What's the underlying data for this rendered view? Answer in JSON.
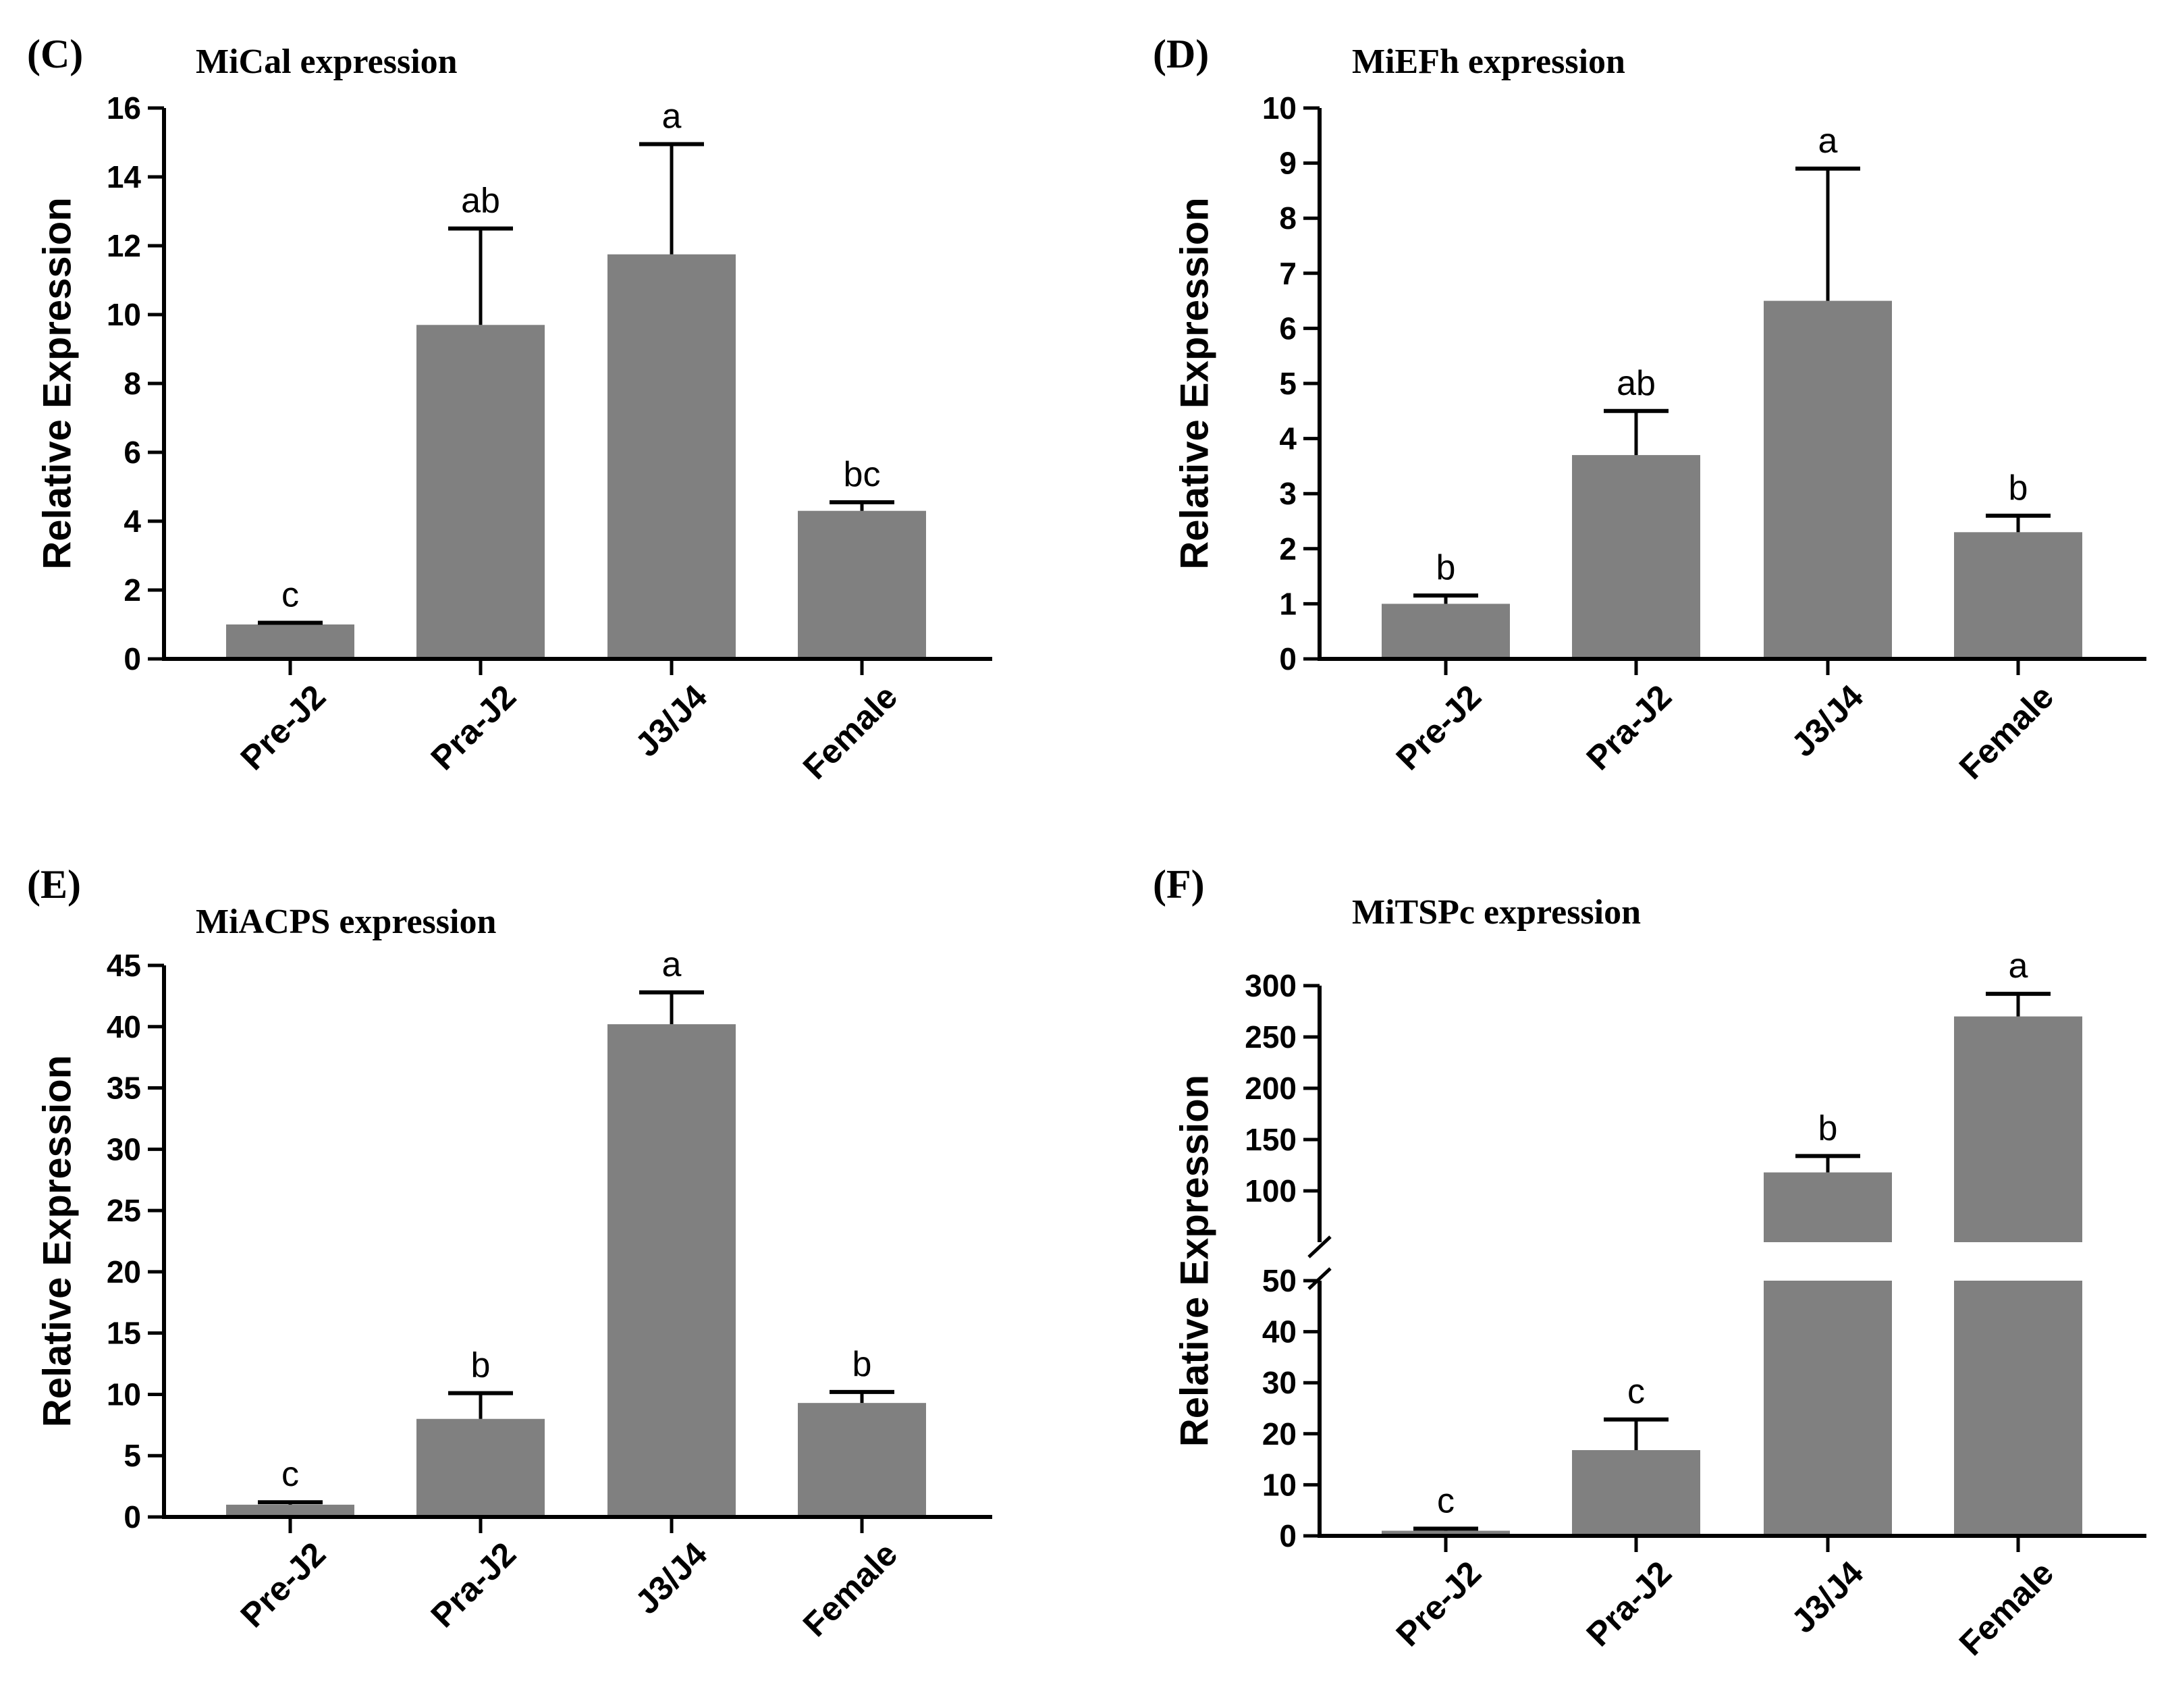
{
  "chart_data": [
    {
      "id": "C",
      "panel_label": "(C)",
      "title": "MiCal expression",
      "type": "bar",
      "ylabel": "Relative Expression",
      "categories": [
        "Pre-J2",
        "Pra-J2",
        "J3/J4",
        "Female"
      ],
      "values": [
        1.0,
        9.7,
        11.75,
        4.3
      ],
      "error": [
        0.05,
        2.8,
        3.2,
        0.25
      ],
      "significance": [
        "c",
        "ab",
        "a",
        "bc"
      ],
      "ylim": [
        0,
        16
      ],
      "yticks": [
        0,
        2,
        4,
        6,
        8,
        10,
        12,
        14,
        16
      ],
      "bar_color": "#808080"
    },
    {
      "id": "D",
      "panel_label": "(D)",
      "title": "MiEFh expression",
      "type": "bar",
      "ylabel": "Relative Expression",
      "categories": [
        "Pre-J2",
        "Pra-J2",
        "J3/J4",
        "Female"
      ],
      "values": [
        1.0,
        3.7,
        6.5,
        2.3
      ],
      "error": [
        0.15,
        0.8,
        2.4,
        0.3
      ],
      "significance": [
        "b",
        "ab",
        "a",
        "b"
      ],
      "ylim": [
        0,
        10
      ],
      "yticks": [
        0,
        1,
        2,
        3,
        4,
        5,
        6,
        7,
        8,
        9,
        10
      ],
      "bar_color": "#808080"
    },
    {
      "id": "E",
      "panel_label": "(E)",
      "title": "MiACPS expression",
      "type": "bar",
      "ylabel": "Relative Expression",
      "categories": [
        "Pre-J2",
        "Pra-J2",
        "J3/J4",
        "Female"
      ],
      "values": [
        1.0,
        8.0,
        40.2,
        9.3
      ],
      "error": [
        0.2,
        2.1,
        2.6,
        0.9
      ],
      "significance": [
        "c",
        "b",
        "a",
        "b"
      ],
      "ylim": [
        0,
        45
      ],
      "yticks": [
        0,
        5,
        10,
        15,
        20,
        25,
        30,
        35,
        40,
        45
      ],
      "bar_color": "#808080"
    },
    {
      "id": "F",
      "panel_label": "(F)",
      "title": "MiTSPc expression",
      "type": "bar",
      "ylabel": "Relative Expression",
      "categories": [
        "Pre-J2",
        "Pra-J2",
        "J3/J4",
        "Female"
      ],
      "values": [
        1.0,
        16.8,
        118,
        270
      ],
      "error": [
        0.4,
        6.0,
        16,
        22
      ],
      "significance": [
        "c",
        "c",
        "b",
        "a"
      ],
      "axis_break": true,
      "lower_range": [
        0,
        50
      ],
      "upper_range": [
        50,
        300
      ],
      "yticks_lower": [
        0,
        10,
        20,
        30,
        40,
        50
      ],
      "yticks_upper": [
        100,
        150,
        200,
        250,
        300
      ],
      "bar_color": "#808080"
    }
  ]
}
